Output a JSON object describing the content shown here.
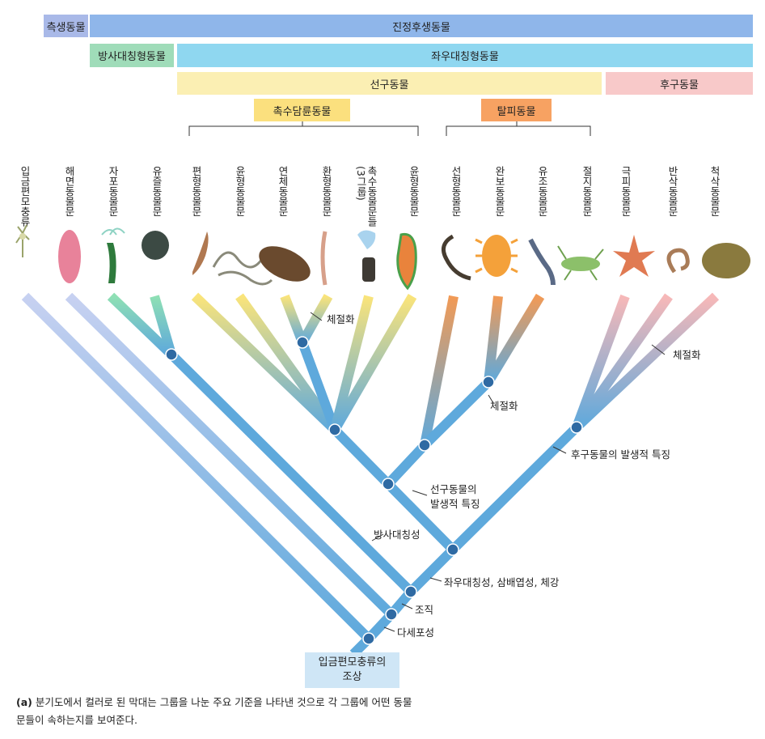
{
  "colors": {
    "branch": "#5ea9dc",
    "node": "#2f6aa3",
    "diploblast_tip": "#8fd6b2",
    "lophotrochozoa_tip": "#f6df7a",
    "ecdysozoa_tip": "#f29a55",
    "deuterostome_tip": "#f6b3b3",
    "choanoflagellate_tip": "#b9c8ee",
    "sponge_tip": "#b9c8ee"
  },
  "bars": {
    "choanoflagellate": "측생동물",
    "eumetazoa": "진정후생동물",
    "radiata": "방사대칭형동물",
    "bilateria": "좌우대칭형동물",
    "protostomia": "선구동물",
    "deuterostomia": "후구동물",
    "lophotrochozoa": "촉수담륜동물",
    "ecdysozoa": "탈피동물"
  },
  "taxa": [
    "입금편모충류",
    "해면동물문",
    "자포동물문",
    "유즐동물문",
    "편형동물문",
    "윤형동물문",
    "연체동물문",
    "환형동물문",
    "촉수동물문들\n(3그룹)",
    "윤형동물문",
    "선형동물문",
    "완보동물문",
    "유조동물문",
    "절지동물문",
    "극피동물문",
    "반삭동물문",
    "척삭동물문"
  ],
  "annotations": {
    "segmentation_1": "체절화",
    "segmentation_2": "체절화",
    "segmentation_3": "체절화",
    "deuterostome_dev": "후구동물의 발생적 특징",
    "protostome_dev": "선구동물의\n발생적 특징",
    "radial_symmetry": "방사대칭성",
    "bilateral": "좌우대칭성, 삼배엽성, 체강",
    "tissues": "조직",
    "multicellularity": "다세포성"
  },
  "root": {
    "line1": "입금편모충류의",
    "line2": "조상"
  },
  "caption": {
    "tag": "(a)",
    "text": " 분기도에서 컬러로 된 막대는 그룹을 나눈 주요 기준을 나타낸 것으로 각 그룹에 어떤 동물문들이 속하는지를 보여준다."
  }
}
